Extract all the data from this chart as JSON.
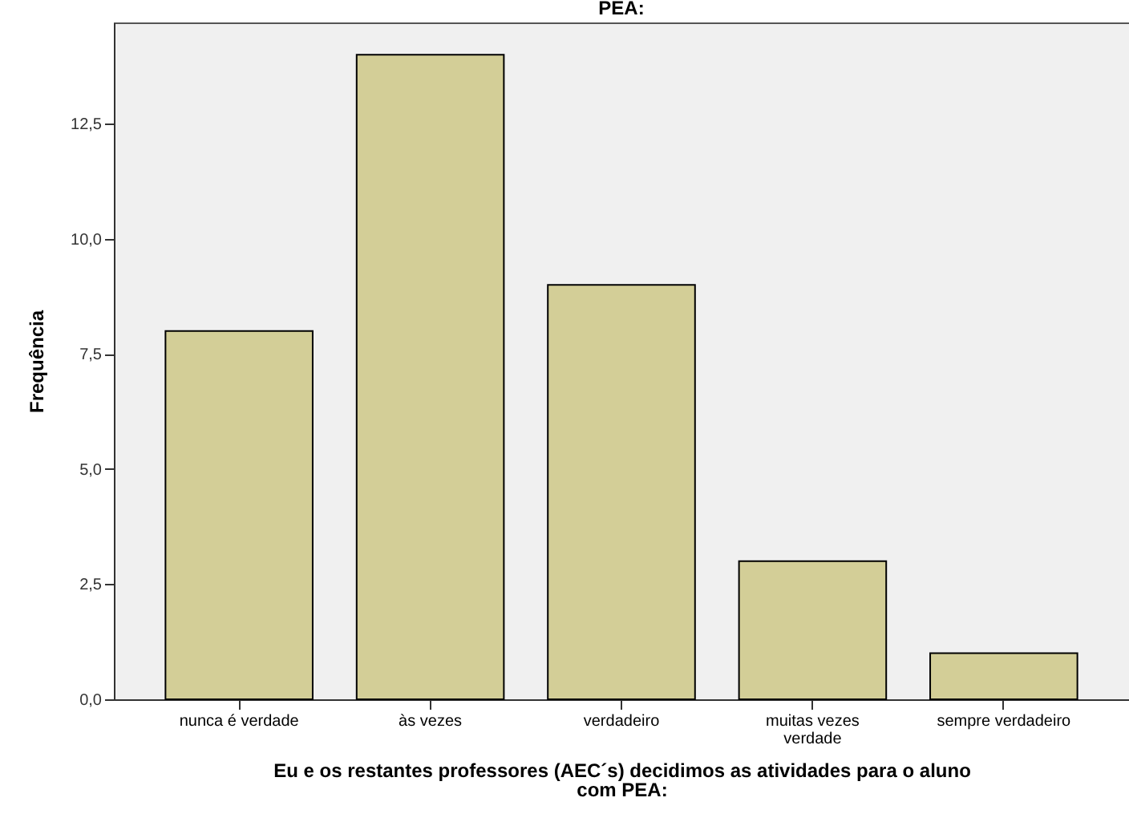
{
  "chart_data": {
    "type": "bar",
    "title": "PEA:",
    "xlabel": "Eu e os restantes professores (AEC´s) decidimos as atividades para o aluno com PEA:",
    "ylabel": "Frequência",
    "categories": [
      "nunca é verdade",
      "às vezes",
      "verdadeiro",
      "muitas vezes verdade",
      "sempre verdadeiro"
    ],
    "values": [
      8,
      14,
      9,
      3,
      1
    ],
    "color": "#d3ce97",
    "ylim": [
      0,
      14.7
    ],
    "yticks": [
      {
        "value": 0,
        "label": "0,0"
      },
      {
        "value": 2.5,
        "label": "2,5"
      },
      {
        "value": 5,
        "label": "5,0"
      },
      {
        "value": 7.5,
        "label": "7,5"
      },
      {
        "value": 10,
        "label": "10,0"
      },
      {
        "value": 12.5,
        "label": "12,5"
      }
    ],
    "grid": false
  }
}
